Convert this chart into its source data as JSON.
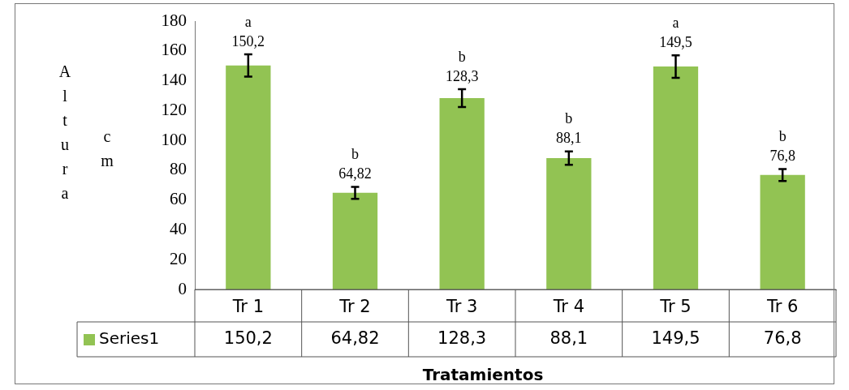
{
  "chart_data": {
    "type": "bar",
    "xlabel": "Tratamientos",
    "ylabel": "Altura cm",
    "categories": [
      "Tr 1",
      "Tr 2",
      "Tr 3",
      "Tr 4",
      "Tr 5",
      "Tr 6"
    ],
    "series": [
      {
        "name": "Series1",
        "color": "#92c353",
        "values": [
          150.2,
          64.82,
          128.3,
          88.1,
          149.5,
          76.8
        ],
        "value_labels": [
          "150,2",
          "64,82",
          "128,3",
          "88,1",
          "149,5",
          "76,8"
        ],
        "errors": [
          7.5,
          4,
          6,
          4.5,
          7.5,
          4
        ]
      }
    ],
    "ylim": [
      0,
      180
    ],
    "yticks": [
      0,
      20,
      40,
      60,
      80,
      100,
      120,
      140,
      160,
      180
    ],
    "grid": false,
    "legend": "bottom",
    "data_labels": true,
    "annotations": [
      {
        "text": "a",
        "x": "Tr 1",
        "y": 150.2
      },
      {
        "text": "b",
        "x": "Tr 2",
        "y": 64.82
      },
      {
        "text": "b",
        "x": "Tr 3",
        "y": 128.3
      },
      {
        "text": "b",
        "x": "Tr 4",
        "y": 88.1
      },
      {
        "text": "a",
        "x": "Tr 5",
        "y": 149.5
      },
      {
        "text": "b",
        "x": "Tr 6",
        "y": 76.8
      }
    ]
  }
}
